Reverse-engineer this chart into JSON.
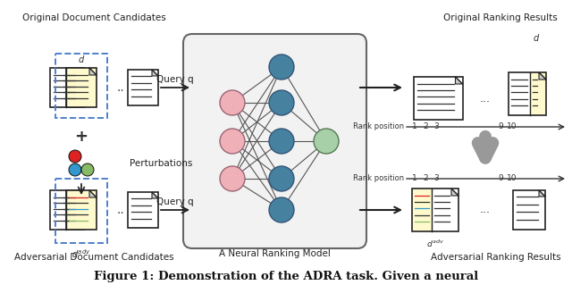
{
  "title": "Figure 1: Demonstration of the ADRA task. Given a neural",
  "title_fontsize": 10,
  "title_bold": true,
  "bg_color": "#ffffff",
  "label_orig_doc": "Original Document Candidates",
  "label_adv_doc": "Adversarial Document Candidates",
  "label_neural": "A Neural Ranking Model",
  "label_orig_rank": "Original Ranking Results",
  "label_adv_rank": "Adversarial Ranking Results",
  "label_perturbations": "Perturbations",
  "label_query_q": "Query q",
  "rank_position_label": "Rank position",
  "rank_numbers": [
    "1",
    "2",
    "3",
    "9",
    "10"
  ],
  "d_label": "d",
  "doc_yellow_fill": "#fffacd",
  "doc_white_fill": "#ffffff",
  "doc_border": "#222222",
  "node_blue": "#4682a0",
  "node_pink": "#f0b0b8",
  "node_green": "#a8d0a8",
  "dashed_box_color": "#5080cc",
  "down_arrow_color": "#999999",
  "perturbation_red": "#dd2222",
  "perturbation_blue": "#3399cc",
  "perturbation_green": "#88bb66",
  "adv_line_red": "#dd2222",
  "adv_line_blue": "#3399cc",
  "adv_line_green": "#88bb66"
}
